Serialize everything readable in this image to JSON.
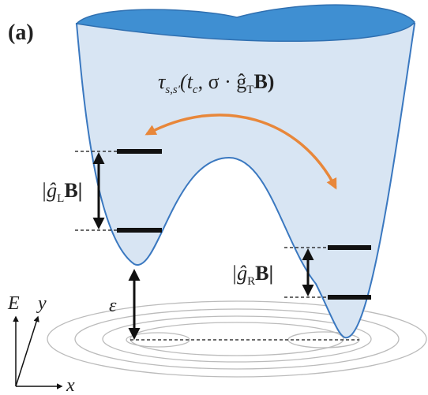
{
  "panel_label": "(a)",
  "tunneling": {
    "symbol": "τ",
    "symbol_sub": "s,s′",
    "open": "(t",
    "open_sub": "c",
    "mid": ", σ · ĝ",
    "mid_sub": "T",
    "close": "B)"
  },
  "left_splitting": {
    "open": "|ĝ",
    "sub": "L",
    "close": "B|"
  },
  "right_splitting": {
    "open": "|ĝ",
    "sub": "R",
    "close": "B|"
  },
  "detuning": "ε",
  "axes": {
    "E": "E",
    "y": "y",
    "x": "x"
  }
}
